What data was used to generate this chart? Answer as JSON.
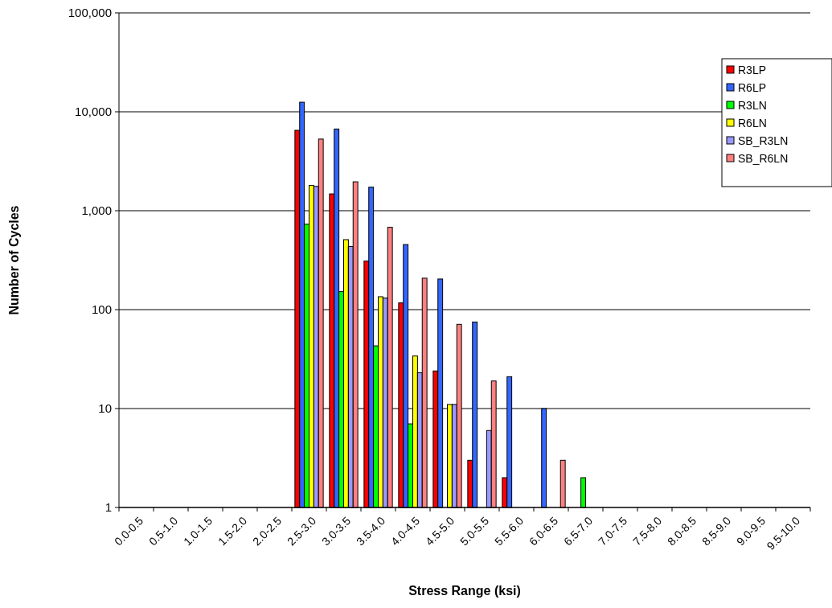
{
  "chart_data": {
    "type": "bar",
    "xlabel": "Stress Range (ksi)",
    "ylabel": "Number of Cycles",
    "categories": [
      "0.0-0.5",
      "0.5-1.0",
      "1.0-1.5",
      "1.5-2.0",
      "2.0-2.5",
      "2.5-3.0",
      "3.0-3.5",
      "3.5-4.0",
      "4.0-4.5",
      "4.5-5.0",
      "5.0-5.5",
      "5.5-6.0",
      "6.0-6.5",
      "6.5-7.0",
      "7.0-7.5",
      "7.5-8.0",
      "8.0-8.5",
      "8.5-9.0",
      "9.0-9.5",
      "9.5-10.0"
    ],
    "series": [
      {
        "name": "R3LP",
        "color": "#ff0000",
        "values": [
          null,
          null,
          null,
          null,
          null,
          6500,
          1480,
          310,
          117,
          24,
          3,
          2,
          null,
          null,
          null,
          null,
          null,
          null,
          null,
          null
        ]
      },
      {
        "name": "R6LP",
        "color": "#3366ff",
        "values": [
          null,
          null,
          null,
          null,
          null,
          12500,
          6700,
          1730,
          455,
          204,
          75,
          21,
          10,
          null,
          null,
          null,
          null,
          null,
          null,
          null
        ]
      },
      {
        "name": "R3LN",
        "color": "#00ff00",
        "values": [
          null,
          null,
          null,
          null,
          null,
          730,
          152,
          43,
          7,
          null,
          null,
          null,
          null,
          2,
          null,
          null,
          null,
          null,
          null,
          null
        ]
      },
      {
        "name": "R6LN",
        "color": "#ffff00",
        "values": [
          null,
          null,
          null,
          null,
          null,
          1800,
          510,
          135,
          34,
          11,
          null,
          null,
          null,
          null,
          null,
          null,
          null,
          null,
          null,
          null
        ]
      },
      {
        "name": "SB_R3LN",
        "color": "#9999ff",
        "values": [
          null,
          null,
          null,
          null,
          null,
          1760,
          435,
          131,
          23,
          11,
          6,
          null,
          null,
          null,
          null,
          null,
          null,
          null,
          null,
          null
        ]
      },
      {
        "name": "SB_R6LN",
        "color": "#ff8080",
        "values": [
          null,
          null,
          null,
          null,
          null,
          5300,
          1960,
          680,
          208,
          71,
          19,
          null,
          3,
          null,
          null,
          null,
          null,
          null,
          null,
          null
        ]
      }
    ],
    "log": "y",
    "ylim": [
      1,
      100000
    ],
    "yticks": [
      1,
      10,
      100,
      {
        "value": 1000,
        "label": "1,000"
      },
      {
        "value": 10000,
        "label": "10,000"
      },
      {
        "value": 100000,
        "label": "100,000"
      }
    ],
    "grid": "y",
    "legend": "top right"
  }
}
